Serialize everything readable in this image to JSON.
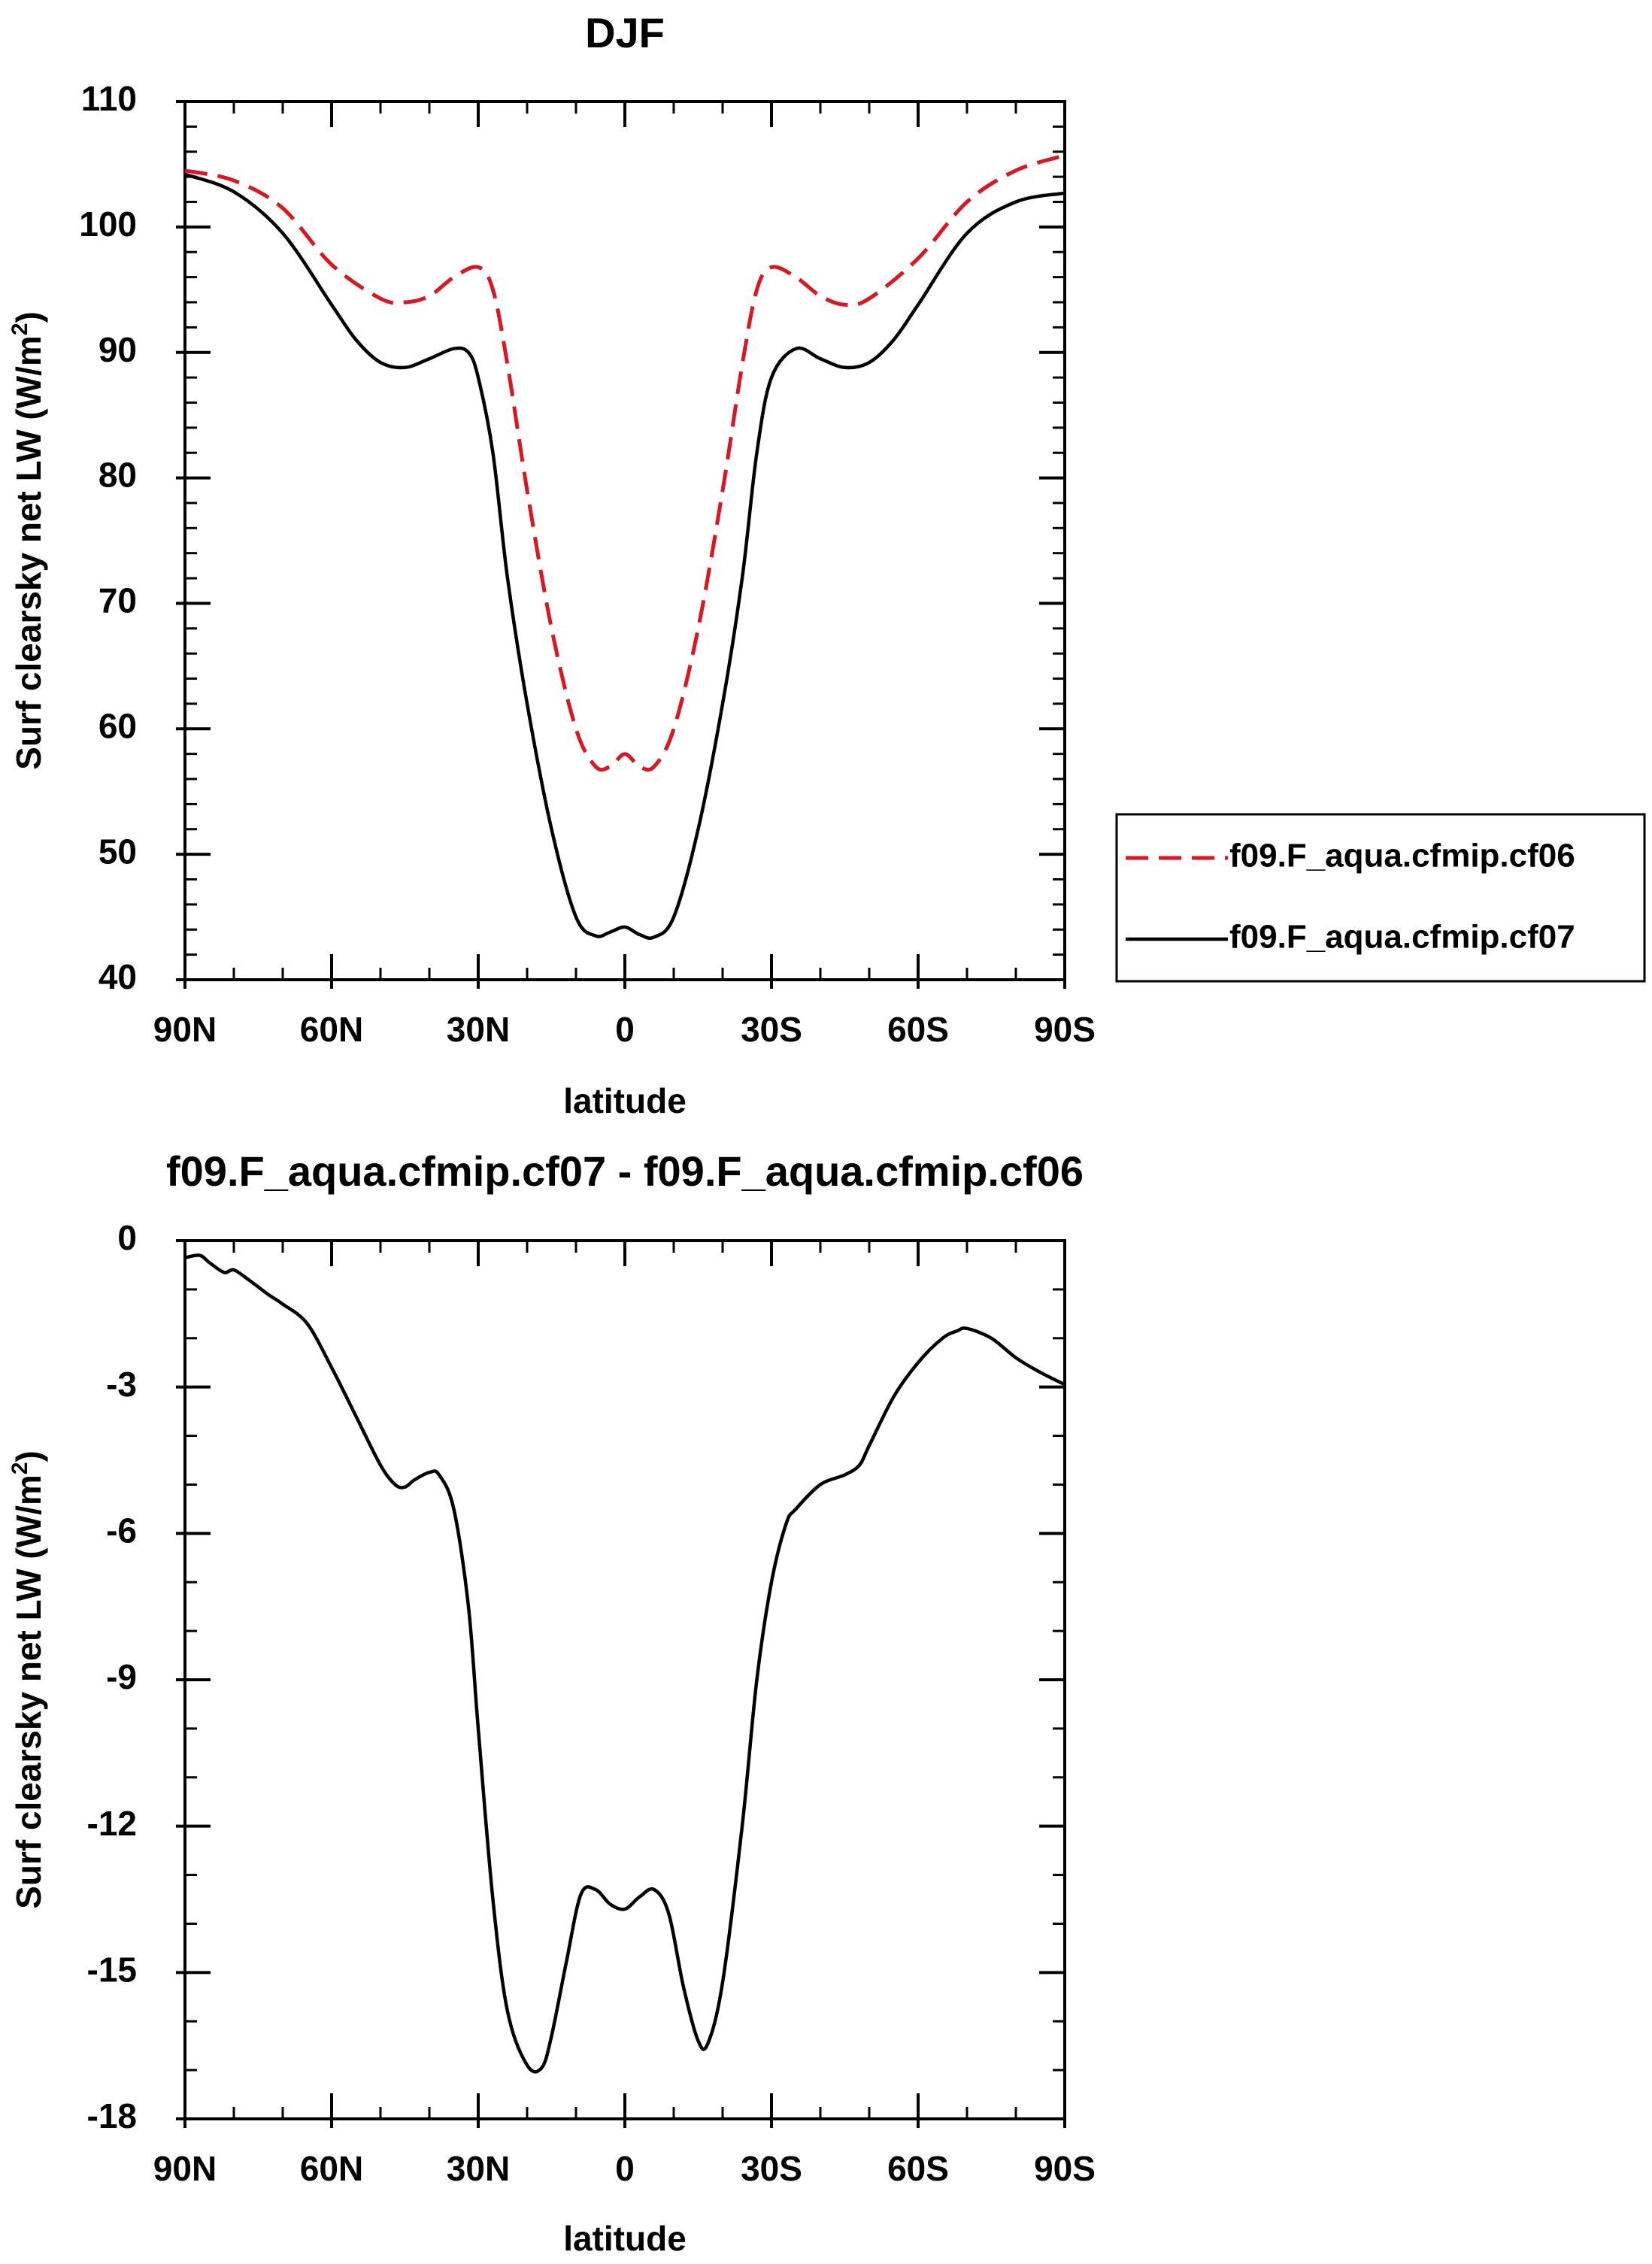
{
  "chart_data": [
    {
      "type": "line",
      "title": "DJF",
      "xlabel": "latitude",
      "ylabel": "Surf clearsky net LW (W/m",
      "ylabel_sup": "2",
      "ylabel_close": ")",
      "xlim": [
        90,
        -90
      ],
      "ylim": [
        40,
        110
      ],
      "xticks": [
        {
          "v": 90,
          "label": "90N"
        },
        {
          "v": 60,
          "label": "60N"
        },
        {
          "v": 30,
          "label": "30N"
        },
        {
          "v": 0,
          "label": "0"
        },
        {
          "v": -30,
          "label": "30S"
        },
        {
          "v": -60,
          "label": "60S"
        },
        {
          "v": -90,
          "label": "90S"
        }
      ],
      "xminor_step": 10,
      "yticks": [
        {
          "v": 110,
          "label": "110"
        },
        {
          "v": 100,
          "label": "100"
        },
        {
          "v": 90,
          "label": "90"
        },
        {
          "v": 80,
          "label": "80"
        },
        {
          "v": 70,
          "label": "70"
        },
        {
          "v": 60,
          "label": "60"
        },
        {
          "v": 50,
          "label": "50"
        },
        {
          "v": 40,
          "label": "40"
        }
      ],
      "yminor_step": 2,
      "legend": "right",
      "series": [
        {
          "name": "f09.F_aqua.cfmip.cf06",
          "color": "#e0141e",
          "dash": true,
          "x": [
            90,
            80,
            70,
            60,
            50,
            45,
            40,
            35,
            30,
            27,
            24,
            20,
            15,
            10,
            6,
            3,
            0,
            -3,
            -6,
            -10,
            -15,
            -20,
            -24,
            -27,
            -30,
            -35,
            -40,
            -45,
            -50,
            -60,
            -70,
            -80,
            -90
          ],
          "y": [
            104.5,
            103.7,
            101.5,
            97,
            94.3,
            94,
            94.5,
            96,
            96.8,
            95,
            89,
            79,
            68,
            60,
            57,
            57,
            58,
            57,
            57,
            60,
            68,
            79,
            89,
            95,
            96.8,
            96,
            94.5,
            93.8,
            94.3,
            97.5,
            102,
            104.5,
            105.7
          ]
        },
        {
          "name": "f09.F_aqua.cfmip.cf07",
          "color": "#000000",
          "dash": false,
          "x": [
            90,
            80,
            70,
            60,
            55,
            50,
            45,
            40,
            35,
            32,
            30,
            27,
            24,
            20,
            15,
            10,
            6,
            3,
            0,
            -3,
            -6,
            -10,
            -15,
            -20,
            -24,
            -27,
            -30,
            -35,
            -40,
            -45,
            -50,
            -55,
            -60,
            -70,
            -80,
            -90
          ],
          "y": [
            104.2,
            102.8,
            99.5,
            93.8,
            91,
            89.2,
            88.8,
            89.5,
            90.3,
            90,
            88,
            82,
            72,
            62,
            52,
            45,
            43.5,
            43.8,
            44.2,
            43.6,
            43.4,
            45,
            52,
            62,
            72,
            82,
            88,
            90.3,
            89.5,
            88.8,
            89.2,
            91,
            93.8,
            99.5,
            102,
            102.7
          ]
        }
      ]
    },
    {
      "type": "line",
      "title": "f09.F_aqua.cfmip.cf07 - f09.F_aqua.cfmip.cf06",
      "xlabel": "latitude",
      "ylabel": "Surf clearsky net LW (W/m",
      "ylabel_sup": "2",
      "ylabel_close": ")",
      "xlim": [
        90,
        -90
      ],
      "ylim": [
        -18,
        0
      ],
      "xticks": [
        {
          "v": 90,
          "label": "90N"
        },
        {
          "v": 60,
          "label": "60N"
        },
        {
          "v": 30,
          "label": "30N"
        },
        {
          "v": 0,
          "label": "0"
        },
        {
          "v": -30,
          "label": "30S"
        },
        {
          "v": -60,
          "label": "60S"
        },
        {
          "v": -90,
          "label": "90S"
        }
      ],
      "xminor_step": 10,
      "yticks": [
        {
          "v": 0,
          "label": "0"
        },
        {
          "v": -3,
          "label": "-3"
        },
        {
          "v": -6,
          "label": "-6"
        },
        {
          "v": -9,
          "label": "-9"
        },
        {
          "v": -12,
          "label": "-12"
        },
        {
          "v": -15,
          "label": "-15"
        },
        {
          "v": -18,
          "label": "-18"
        }
      ],
      "yminor_step": 1,
      "series": [
        {
          "color": "#000000",
          "dash": false,
          "x": [
            90,
            87,
            85,
            82,
            80,
            77,
            73,
            70,
            65,
            60,
            55,
            50,
            47,
            45,
            43,
            40,
            38,
            35,
            32,
            30,
            27,
            24,
            20,
            17,
            15,
            12,
            9,
            6,
            3,
            0,
            -3,
            -6,
            -9,
            -12,
            -15,
            -17,
            -20,
            -24,
            -27,
            -30,
            -33,
            -35,
            -40,
            -45,
            -48,
            -50,
            -55,
            -60,
            -65,
            -68,
            -70,
            -75,
            -80,
            -85,
            -90
          ],
          "y": [
            -0.35,
            -0.3,
            -0.45,
            -0.65,
            -0.6,
            -0.8,
            -1.1,
            -1.3,
            -1.7,
            -2.6,
            -3.6,
            -4.6,
            -5.0,
            -5.05,
            -4.9,
            -4.75,
            -4.8,
            -5.5,
            -7.5,
            -10.0,
            -13.5,
            -15.8,
            -16.9,
            -16.95,
            -16.3,
            -14.8,
            -13.4,
            -13.3,
            -13.6,
            -13.7,
            -13.45,
            -13.3,
            -13.8,
            -15.3,
            -16.4,
            -16.45,
            -15.2,
            -12.0,
            -9.0,
            -7.0,
            -5.8,
            -5.5,
            -5.0,
            -4.8,
            -4.6,
            -4.2,
            -3.2,
            -2.5,
            -2.0,
            -1.85,
            -1.8,
            -2.0,
            -2.4,
            -2.7,
            -2.95
          ]
        }
      ]
    }
  ]
}
